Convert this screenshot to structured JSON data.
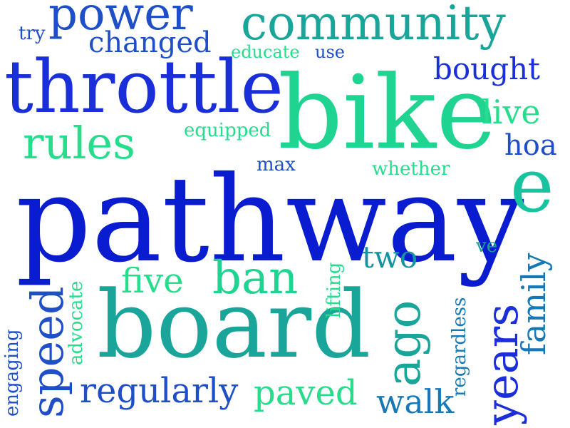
{
  "colors": {
    "background": "#ffffff",
    "blue": "#1a2fd9",
    "blue_dark": "#0a1cd0",
    "blue_mid": "#1f4fc8",
    "teal": "#1aa59a",
    "teal_dark": "#1393a0",
    "teal_blue": "#1778b6",
    "green": "#1fd390",
    "green_light": "#26dd8c",
    "cyan_green": "#18c3a0"
  },
  "words": {
    "pathway": "pathway",
    "board": "board",
    "bike": "bike",
    "throttle": "throttle",
    "e": "e",
    "community": "community",
    "power": "power",
    "rules": "rules",
    "ban": "ban",
    "years": "years",
    "speed": "speed",
    "ago": "ago",
    "regularly": "regularly",
    "paved": "paved",
    "family": "family",
    "changed": "changed",
    "bought": "bought",
    "five": "five",
    "two": "two",
    "walk": "walk",
    "live": "live",
    "hoa": "hoa",
    "equipped": "equipped",
    "whether": "whether",
    "educate": "educate",
    "use": "use",
    "try": "try",
    "max": "max",
    "ve": "ve",
    "lifting": "lifting",
    "advocate": "advocate",
    "engaging": "engaging",
    "regardless": "regardless"
  }
}
